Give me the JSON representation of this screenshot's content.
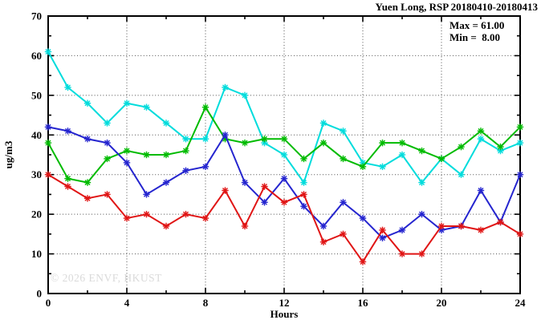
{
  "watermark": "© 2026 ENVF, HKUST",
  "chart_data": {
    "type": "line",
    "title": "Yuen Long, RSP 20180410-20180413",
    "xlabel": "Hours",
    "ylabel": "ug/m3",
    "xlim": [
      0,
      24
    ],
    "ylim": [
      0,
      70
    ],
    "x_major_ticks": [
      0,
      4,
      8,
      12,
      16,
      20,
      24
    ],
    "x_minor_step": 2,
    "y_major_ticks": [
      0,
      10,
      20,
      30,
      40,
      50,
      60,
      70
    ],
    "y_minor_step": 5,
    "grid": "dotted",
    "legend": "none",
    "annotations": {
      "max": "Max = 61.00",
      "min": "Min =  8.00"
    },
    "x": [
      0,
      1,
      2,
      3,
      4,
      5,
      6,
      7,
      8,
      9,
      10,
      11,
      12,
      13,
      14,
      15,
      16,
      17,
      18,
      19,
      20,
      21,
      22,
      23,
      24
    ],
    "series": [
      {
        "name": "cyan",
        "color": "#00dcdc",
        "values": [
          61,
          52,
          48,
          43,
          48,
          47,
          43,
          39,
          39,
          52,
          50,
          38,
          35,
          28,
          43,
          41,
          33,
          32,
          35,
          28,
          34,
          30,
          39,
          36,
          38
        ]
      },
      {
        "name": "green",
        "color": "#00bb00",
        "values": [
          38,
          29,
          28,
          34,
          36,
          35,
          35,
          36,
          47,
          39,
          38,
          39,
          39,
          34,
          38,
          34,
          32,
          38,
          38,
          36,
          34,
          37,
          41,
          37,
          42
        ]
      },
      {
        "name": "blue",
        "color": "#2525cf",
        "values": [
          42,
          41,
          39,
          38,
          33,
          25,
          28,
          31,
          32,
          40,
          28,
          23,
          29,
          22,
          17,
          23,
          19,
          14,
          16,
          20,
          16,
          17,
          26,
          18,
          30
        ]
      },
      {
        "name": "red",
        "color": "#e01515",
        "values": [
          30,
          27,
          24,
          25,
          19,
          20,
          17,
          20,
          19,
          26,
          17,
          27,
          23,
          25,
          13,
          15,
          8,
          16,
          10,
          10,
          17,
          17,
          16,
          18,
          15
        ]
      }
    ]
  }
}
